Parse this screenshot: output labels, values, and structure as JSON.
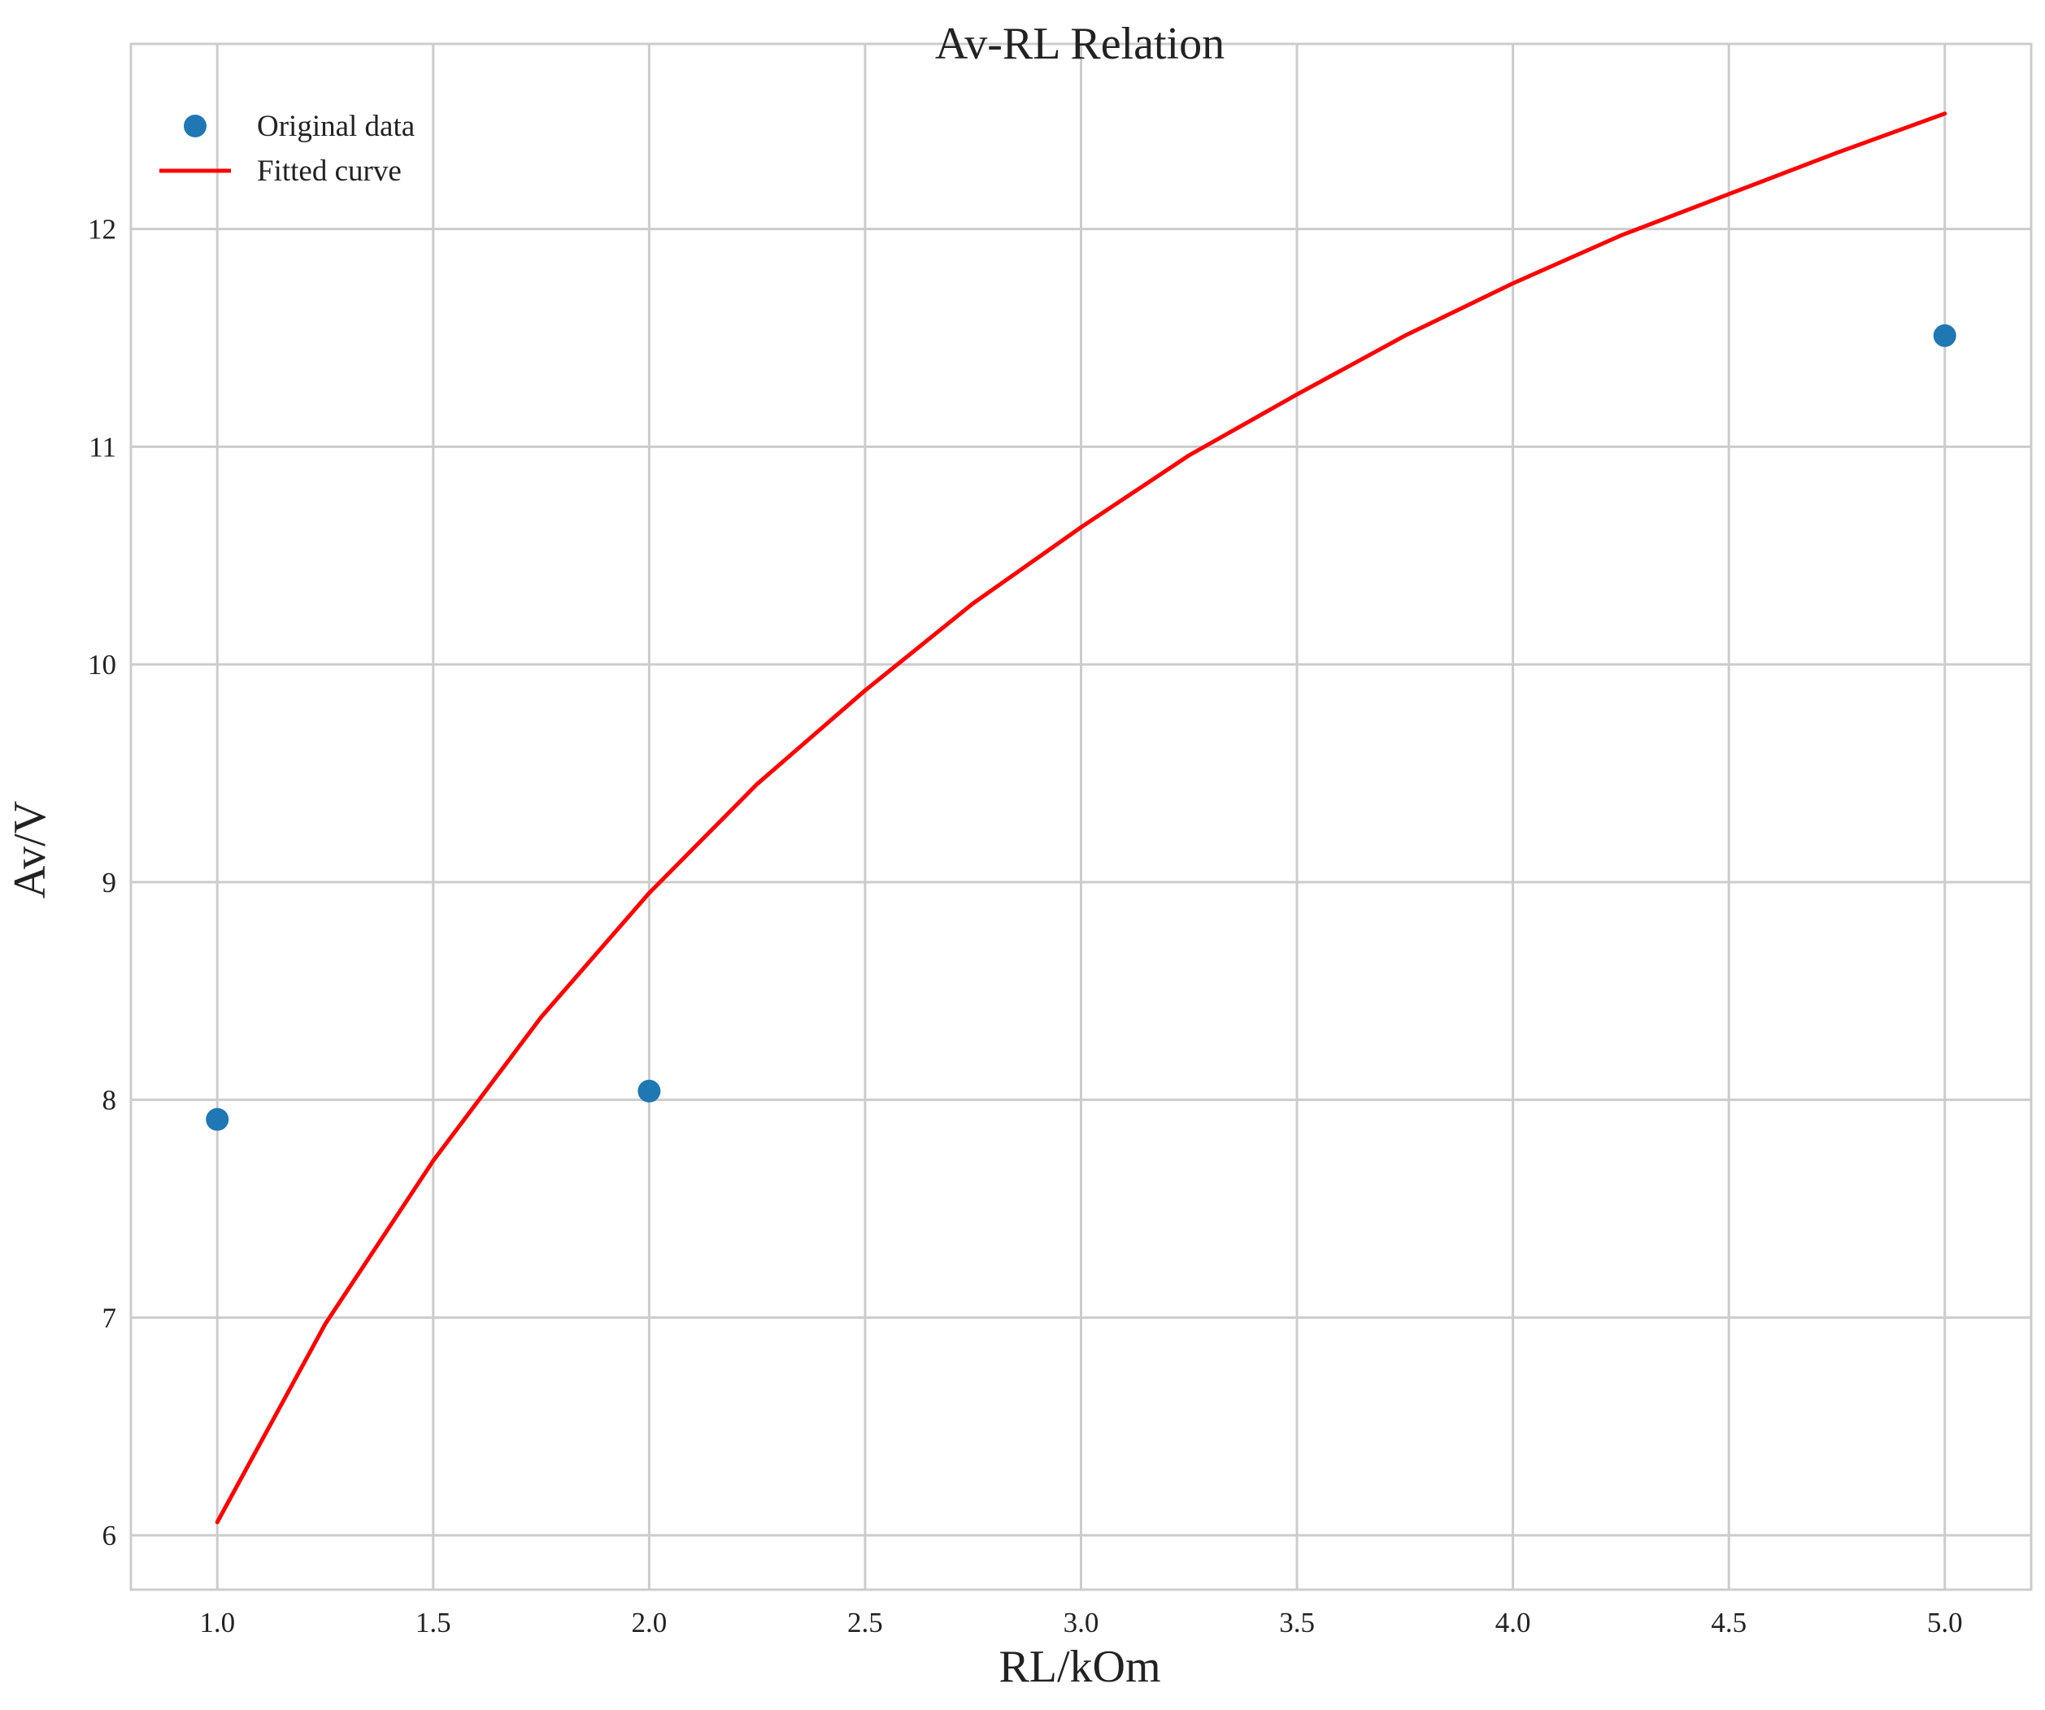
{
  "chart_data": {
    "type": "scatter",
    "title": "Av-RL Relation",
    "xlabel": "RL/kOm",
    "ylabel": "Av/V",
    "xlim": [
      0.8,
      5.2
    ],
    "ylim": [
      5.75,
      12.85
    ],
    "xticks": [
      1.0,
      1.5,
      2.0,
      2.5,
      3.0,
      3.5,
      4.0,
      4.5,
      5.0
    ],
    "xtick_labels": [
      "1.0",
      "1.5",
      "2.0",
      "2.5",
      "3.0",
      "3.5",
      "4.0",
      "4.5",
      "5.0"
    ],
    "yticks": [
      6,
      7,
      8,
      9,
      10,
      11,
      12
    ],
    "ytick_labels": [
      "6",
      "7",
      "8",
      "9",
      "10",
      "11",
      "12"
    ],
    "grid": true,
    "legend_position": "top-left",
    "series": [
      {
        "name": "Original data",
        "type": "scatter",
        "color": "#1f77b4",
        "x": [
          1.0,
          2.0,
          5.0
        ],
        "y": [
          7.91,
          8.04,
          11.51
        ]
      },
      {
        "name": "Fitted curve",
        "type": "line",
        "color": "#ff0000",
        "x": [
          1.0,
          1.25,
          1.5,
          1.75,
          2.0,
          2.25,
          2.5,
          2.75,
          3.0,
          3.25,
          3.5,
          3.75,
          4.0,
          4.25,
          4.5,
          4.75,
          5.0
        ],
        "y": [
          6.06,
          6.97,
          7.72,
          8.38,
          8.95,
          9.45,
          9.88,
          10.28,
          10.63,
          10.96,
          11.24,
          11.51,
          11.75,
          11.97,
          12.16,
          12.35,
          12.53
        ]
      }
    ]
  }
}
